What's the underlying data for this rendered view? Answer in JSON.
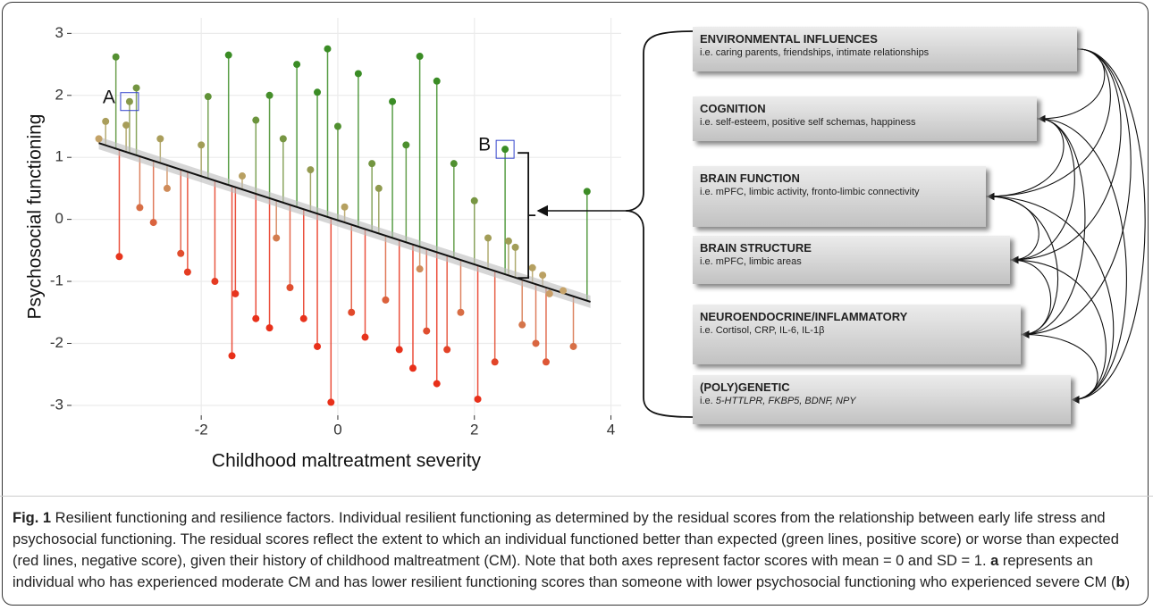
{
  "chart_data": {
    "type": "scatter",
    "x_label": "Childhood maltreatment severity",
    "y_label": "Psychosocial functioning",
    "xlim": [
      -3.9,
      4.15
    ],
    "ylim": [
      -3.16,
      3.25
    ],
    "xticks": [
      -2,
      0,
      2,
      4
    ],
    "yticks": [
      -3,
      -2,
      -1,
      0,
      1,
      2,
      3
    ],
    "grid": true,
    "positive_color": "#3a8c25",
    "negative_color": "#e8301a",
    "neutral_color": "#c9a36a",
    "fit_color": "#111",
    "band_color": "#bbb",
    "fit_line": {
      "x": [
        -3.5,
        3.7
      ],
      "y": [
        1.23,
        -1.33
      ]
    },
    "fit_band_halfwidth": 0.1,
    "x": [
      -3.05,
      2.45,
      3.65,
      -3.2,
      -0.1,
      -1.55,
      1.2,
      -0.15,
      2.05,
      1.45,
      3.05,
      3.45,
      -3.5,
      -3.4,
      -3.25,
      -2.95,
      -3.1,
      -2.9,
      -2.7,
      -2.5,
      -2.3,
      -2.0,
      -1.9,
      -1.6,
      -1.2,
      -1.0,
      -0.8,
      -0.6,
      -0.4,
      -0.3,
      0,
      0.3,
      0.5,
      0.8,
      1.0,
      1.45,
      1.7,
      2.0,
      2.2,
      2.5,
      2.6,
      2.85,
      3.0,
      3.1,
      3.3,
      -2.2,
      -1.8,
      -1.5,
      -1.2,
      -1.0,
      -0.7,
      -0.5,
      -0.3,
      0.2,
      0.4,
      0.7,
      0.9,
      1.1,
      1.3,
      1.6,
      1.8,
      2.3,
      2.7,
      2.9,
      0.1,
      -0.9,
      1.2,
      -2.6,
      0.6,
      -1.4
    ],
    "values": [
      1.9,
      1.13,
      0.45,
      -0.6,
      -2.95,
      -2.2,
      2.63,
      2.75,
      -2.9,
      -2.65,
      -2.3,
      -2.05,
      1.3,
      1.58,
      2.62,
      2.12,
      1.52,
      0.19,
      -0.05,
      0.5,
      -0.55,
      1.2,
      1.98,
      2.65,
      1.6,
      2.0,
      1.3,
      2.5,
      0.8,
      2.05,
      1.5,
      2.35,
      0.9,
      1.9,
      1.2,
      2.23,
      0.9,
      0.3,
      -0.3,
      -0.35,
      -0.45,
      -0.78,
      -0.9,
      -1.2,
      -1.15,
      -0.85,
      -1.0,
      -1.2,
      -1.6,
      -1.75,
      -1.1,
      -1.6,
      -2.05,
      -1.5,
      -1.9,
      -1.3,
      -2.1,
      -2.4,
      -1.8,
      -2.1,
      -1.5,
      -2.3,
      -1.7,
      -2.0,
      0.2,
      -0.3,
      -0.8,
      1.3,
      0.5,
      0.7
    ],
    "annotations": [
      {
        "text": "A",
        "x": -3.05,
        "y": 1.9
      },
      {
        "text": "B",
        "x": 2.45,
        "y": 1.13
      }
    ]
  },
  "factors": [
    {
      "title": "ENVIRONMENTAL INFLUENCES",
      "detail": "i.e. caring parents, friendships, intimate relationships"
    },
    {
      "title": "COGNITION",
      "detail": "i.e. self-esteem, positive self schemas, happiness"
    },
    {
      "title": "BRAIN FUNCTION",
      "detail": "i.e. mPFC, limbic activity, fronto-limbic connectivity"
    },
    {
      "title": "BRAIN STRUCTURE",
      "detail": "i.e. mPFC, limbic areas"
    },
    {
      "title": "NEUROENDOCRINE/INFLAMMATORY",
      "detail": "i.e. Cortisol, CRP, IL-6, IL-1β"
    },
    {
      "title": "(POLY)GENETIC",
      "detail": "i.e.",
      "detail_italic": "5-HTTLPR, FKBP5, BDNF, NPY"
    }
  ],
  "caption": [
    {
      "text": "Fig. 1",
      "bold": true
    },
    {
      "text": " Resilient functioning and resilience factors. Individual resilient functioning as determined by the residual scores from the relationship between early life stress and psychosocial functioning. The residual scores reflect the extent to which an individual functioned better than expected (green lines, positive score) or worse than expected (red lines, negative score), given their history of childhood maltreatment (CM). Note that both axes represent factor scores with mean = 0 and SD = 1. ",
      "bold": false
    },
    {
      "text": "a",
      "bold": true
    },
    {
      "text": " represents an individual who has experienced moderate CM and has lower resilient functioning scores than someone with lower psychosocial functioning who experienced severe CM (",
      "bold": false
    },
    {
      "text": "b",
      "bold": true
    },
    {
      "text": ")",
      "bold": false
    }
  ]
}
